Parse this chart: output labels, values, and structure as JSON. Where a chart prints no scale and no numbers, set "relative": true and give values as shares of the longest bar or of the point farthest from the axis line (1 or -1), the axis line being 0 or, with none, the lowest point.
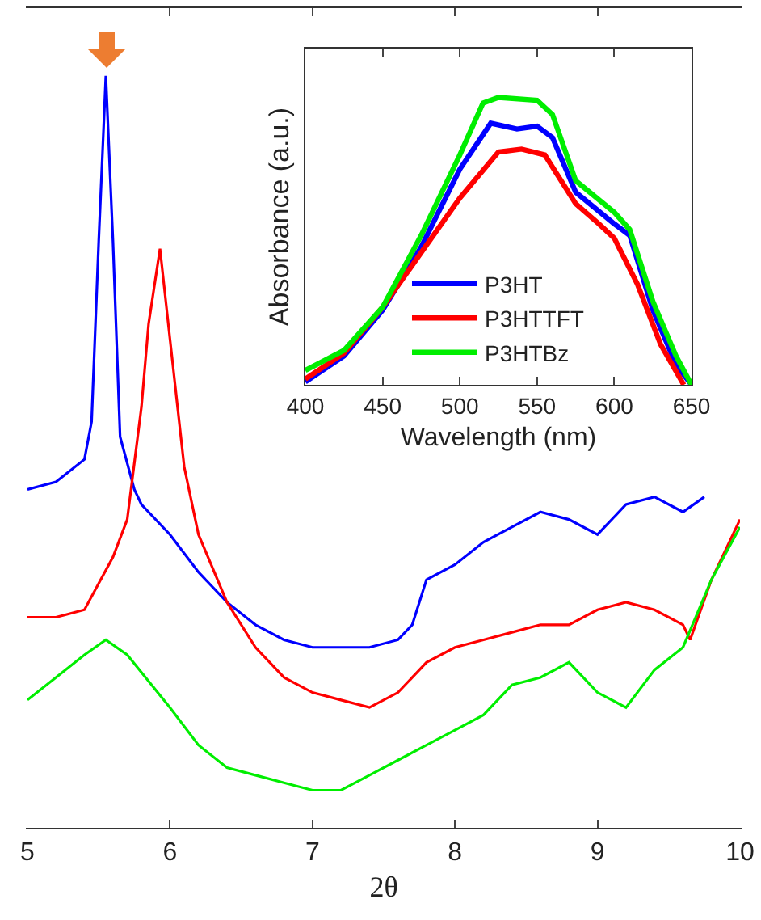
{
  "chart_data": [
    {
      "type": "line",
      "xlabel": "2θ",
      "relative": true,
      "xlim": [
        5,
        10
      ],
      "xticks": [
        5,
        6,
        7,
        8,
        9,
        10
      ],
      "grid": false,
      "legend": false,
      "marker": "none",
      "line_style": "solid",
      "series": [
        {
          "color": "#0000ff",
          "x": [
            5.0,
            5.2,
            5.4,
            5.45,
            5.5,
            5.55,
            5.6,
            5.65,
            5.75,
            5.8,
            6.0,
            6.2,
            6.4,
            6.6,
            6.8,
            7.0,
            7.2,
            7.4,
            7.6,
            7.7,
            7.8,
            8.0,
            8.2,
            8.4,
            8.6,
            8.8,
            9.0,
            9.2,
            9.4,
            9.6,
            9.75
          ],
          "values": [
            0.45,
            0.46,
            0.49,
            0.54,
            0.78,
            1.0,
            0.78,
            0.52,
            0.45,
            0.43,
            0.39,
            0.34,
            0.3,
            0.27,
            0.25,
            0.24,
            0.24,
            0.24,
            0.25,
            0.27,
            0.33,
            0.35,
            0.38,
            0.4,
            0.42,
            0.41,
            0.39,
            0.43,
            0.44,
            0.42,
            0.44
          ]
        },
        {
          "color": "#ff0000",
          "x": [
            5.0,
            5.2,
            5.4,
            5.6,
            5.7,
            5.8,
            5.85,
            5.93,
            6.0,
            6.1,
            6.2,
            6.4,
            6.6,
            6.8,
            7.0,
            7.2,
            7.4,
            7.6,
            7.8,
            8.0,
            8.2,
            8.4,
            8.6,
            8.8,
            9.0,
            9.2,
            9.4,
            9.6,
            9.65,
            9.8,
            10.0
          ],
          "values": [
            0.28,
            0.28,
            0.29,
            0.36,
            0.41,
            0.56,
            0.67,
            0.77,
            0.65,
            0.48,
            0.39,
            0.3,
            0.24,
            0.2,
            0.18,
            0.17,
            0.16,
            0.18,
            0.22,
            0.24,
            0.25,
            0.26,
            0.27,
            0.27,
            0.29,
            0.3,
            0.29,
            0.27,
            0.25,
            0.33,
            0.41
          ]
        },
        {
          "color": "#00ee00",
          "x": [
            5.0,
            5.2,
            5.4,
            5.55,
            5.7,
            6.0,
            6.2,
            6.4,
            6.6,
            6.8,
            7.0,
            7.2,
            7.4,
            7.6,
            7.8,
            8.0,
            8.2,
            8.4,
            8.6,
            8.8,
            9.0,
            9.2,
            9.4,
            9.6,
            9.8,
            10.0
          ],
          "values": [
            0.17,
            0.2,
            0.23,
            0.25,
            0.23,
            0.16,
            0.11,
            0.08,
            0.07,
            0.06,
            0.05,
            0.05,
            0.07,
            0.09,
            0.11,
            0.13,
            0.15,
            0.19,
            0.2,
            0.22,
            0.18,
            0.16,
            0.21,
            0.24,
            0.33,
            0.4
          ]
        }
      ]
    },
    {
      "type": "line",
      "xlabel": "Wavelength (nm)",
      "ylabel": "Absorbance (a.u.)",
      "relative": true,
      "xlim": [
        400,
        650
      ],
      "xticks": [
        400,
        450,
        500,
        550,
        600,
        650
      ],
      "grid": false,
      "legend": "bottom",
      "marker": "none",
      "line_style": "solid",
      "series": [
        {
          "name": "P3HT",
          "color": "#0000ff",
          "x": [
            400,
            425,
            450,
            475,
            500,
            520,
            537,
            550,
            560,
            575,
            600,
            610,
            625,
            640,
            650
          ],
          "values": [
            0.01,
            0.1,
            0.26,
            0.48,
            0.75,
            0.91,
            0.89,
            0.9,
            0.86,
            0.67,
            0.56,
            0.52,
            0.26,
            0.07,
            0
          ]
        },
        {
          "name": "P3HTTFT",
          "color": "#ff0000",
          "x": [
            400,
            425,
            450,
            475,
            500,
            525,
            540,
            555,
            575,
            590,
            600,
            615,
            630,
            645
          ],
          "values": [
            0.02,
            0.11,
            0.27,
            0.46,
            0.65,
            0.81,
            0.82,
            0.8,
            0.63,
            0.56,
            0.51,
            0.35,
            0.14,
            0
          ]
        },
        {
          "name": "P3HTBz",
          "color": "#00ee00",
          "x": [
            400,
            425,
            450,
            475,
            500,
            515,
            525,
            550,
            560,
            575,
            600,
            610,
            625,
            640,
            650
          ],
          "values": [
            0.05,
            0.12,
            0.27,
            0.52,
            0.8,
            0.98,
            1.0,
            0.99,
            0.94,
            0.71,
            0.6,
            0.54,
            0.29,
            0.1,
            0
          ]
        }
      ]
    }
  ]
}
